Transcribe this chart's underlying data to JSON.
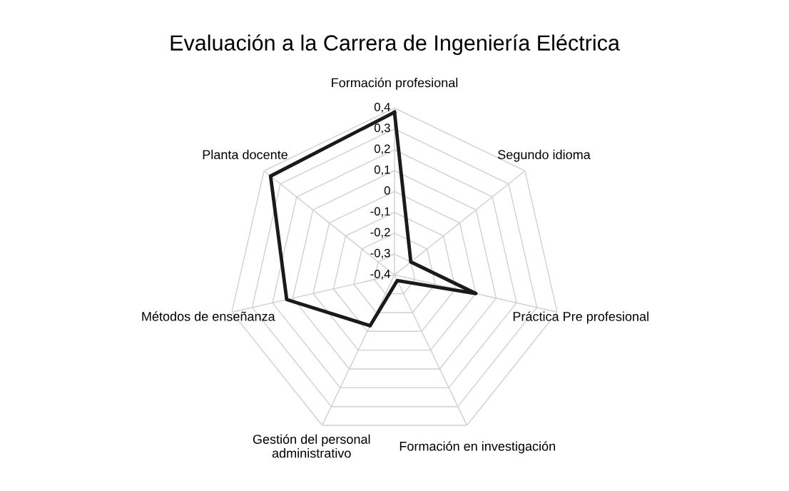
{
  "chart_data": {
    "type": "radar",
    "title": "Evaluación a la Carrera de Ingeniería Eléctrica",
    "categories": [
      "Formación profesional",
      "Segundo idioma",
      "Práctica Pre profesional",
      "Formación en investigación",
      "Gestión del personal\nadministrativo",
      "Métodos de enseñanza",
      "Planta docente"
    ],
    "series": [
      {
        "color": "#1a1a1a",
        "values": [
          0.38,
          -0.3,
          0.0,
          -0.37,
          -0.13,
          0.13,
          0.36
        ]
      }
    ],
    "ylim": [
      -0.4,
      0.4
    ],
    "yticks": [
      {
        "value": 0.4,
        "label": "0,4"
      },
      {
        "value": 0.3,
        "label": "0,3"
      },
      {
        "value": 0.2,
        "label": "0,2"
      },
      {
        "value": 0.1,
        "label": "0,1"
      },
      0,
      {
        "value": -0.1,
        "label": "-0,1"
      },
      {
        "value": -0.2,
        "label": "-0,2"
      },
      {
        "value": -0.3,
        "label": "-0,3"
      },
      {
        "value": -0.4,
        "label": "-0,4"
      }
    ],
    "grid": true,
    "marker": "none",
    "line_style": "solid"
  }
}
